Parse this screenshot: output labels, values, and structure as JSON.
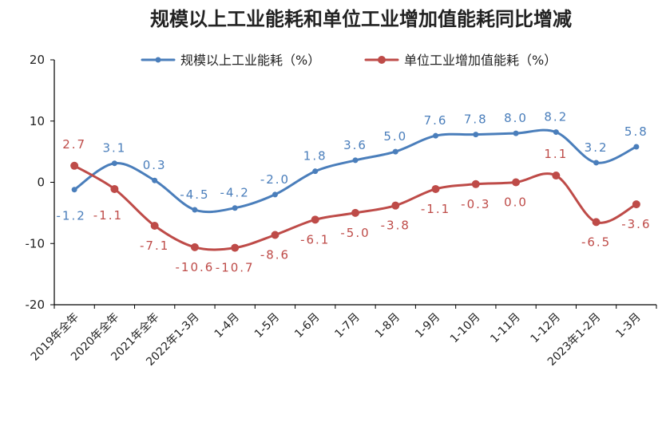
{
  "chart_data": {
    "type": "line",
    "title": "规模以上工业能耗和单位工业增加值能耗同比增减",
    "categories": [
      "2019年全年",
      "2020年全年",
      "2021年全年",
      "2022年1-3月",
      "1-4月",
      "1-5月",
      "1-6月",
      "1-7月",
      "1-8月",
      "1-9月",
      "1-10月",
      "1-11月",
      "1-12月",
      "2023年1-2月",
      "1-3月"
    ],
    "series": [
      {
        "name": "规模以上工业能耗（%）",
        "color": "#4A7EBB",
        "values": [
          -1.2,
          3.1,
          0.3,
          -4.5,
          -4.2,
          -2.0,
          1.8,
          3.6,
          5.0,
          7.6,
          7.8,
          8.0,
          8.2,
          3.2,
          5.8
        ],
        "labels": [
          "-1.2",
          "3.1",
          "0.3",
          "-4.5",
          "-4.2",
          "-2.0",
          "1.8",
          "3.6",
          "5.0",
          "7.6",
          "7.8",
          "8.0",
          "8.2",
          "3.2",
          "5.8"
        ]
      },
      {
        "name": "单位工业增加值能耗（%）",
        "color": "#BE4B48",
        "values": [
          2.7,
          -1.1,
          -7.1,
          -10.6,
          -10.7,
          -8.6,
          -6.1,
          -5.0,
          -3.8,
          -1.1,
          -0.3,
          0.0,
          1.1,
          -6.5,
          -3.6
        ],
        "labels": [
          "2.7",
          "-1.1",
          "-7.1",
          "-10.6",
          "-10.7",
          "-8.6",
          "-6.1",
          "-5.0",
          "-3.8",
          "-1.1",
          "-0.3",
          "0.0",
          "1.1",
          "-6.5",
          "-3.6"
        ]
      }
    ],
    "ylim": [
      -20,
      20
    ],
    "yticks": [
      "20",
      "10",
      "0",
      "-10",
      "-20"
    ],
    "grid": false,
    "legend_position": "top"
  }
}
